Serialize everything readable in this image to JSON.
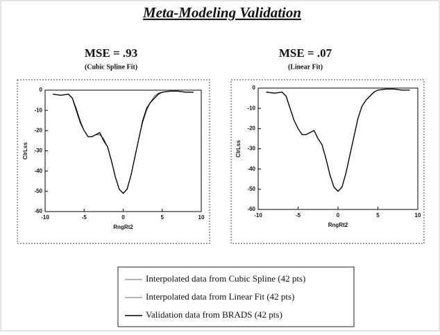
{
  "title": "Meta-Modeling Validation",
  "chart_data": [
    {
      "type": "line",
      "title": "MSE = .93",
      "subtitle": "(Cubic Spline Fit)",
      "x_label": "RngRt2",
      "y_label": "ClrLss",
      "x": [
        -9,
        -8,
        -7,
        -6.5,
        -6,
        -5.5,
        -5,
        -4.5,
        -4,
        -3.5,
        -3,
        -2.5,
        -2,
        -1.5,
        -1,
        -0.5,
        0,
        0.5,
        1,
        1.5,
        2,
        2.5,
        3,
        3.5,
        4,
        4.5,
        5,
        6,
        7,
        8,
        9
      ],
      "series": [
        {
          "name": "Interpolated data from Cubic Spline (42 pts)",
          "color": "#333333",
          "values": [
            -2,
            -2.5,
            -2,
            -4,
            -9,
            -15,
            -20,
            -23,
            -23,
            -22,
            -22,
            -24,
            -28,
            -35,
            -43,
            -49,
            -51,
            -49,
            -42,
            -33,
            -24,
            -16,
            -10,
            -6,
            -3,
            -1.5,
            -1,
            -0.5,
            -0.5,
            -1,
            -1
          ]
        },
        {
          "name": "Validation data from BRADS (42 pts)",
          "color": "#000000",
          "values": [
            -2,
            -2.5,
            -2,
            -4,
            -10,
            -16,
            -20,
            -23,
            -23,
            -22,
            -21,
            -25,
            -28,
            -35,
            -43,
            -49,
            -51,
            -49,
            -42,
            -33,
            -24,
            -15,
            -9,
            -6,
            -4,
            -2,
            -1,
            -0.5,
            -0.5,
            -1,
            -1
          ]
        }
      ],
      "xlim": [
        -10,
        10
      ],
      "xticks": [
        -10,
        -5,
        0,
        5,
        10
      ],
      "ylim": [
        -60,
        0
      ],
      "yticks": [
        -60,
        -50,
        -40,
        -30,
        -20,
        -10,
        0
      ]
    },
    {
      "type": "line",
      "title": "MSE = .07",
      "subtitle": "(Linear Fit)",
      "x_label": "RngRt2",
      "y_label": "ClrLss",
      "x": [
        -9,
        -8,
        -7,
        -6.5,
        -6,
        -5.5,
        -5,
        -4.5,
        -4,
        -3.5,
        -3,
        -2.5,
        -2,
        -1.5,
        -1,
        -0.5,
        0,
        0.5,
        1,
        1.5,
        2,
        2.5,
        3,
        3.5,
        4,
        4.5,
        5,
        6,
        7,
        8,
        9
      ],
      "series": [
        {
          "name": "Interpolated data from Linear Fit (42 pts)",
          "color": "#333333",
          "values": [
            -2,
            -2.5,
            -2,
            -4,
            -10,
            -16,
            -20,
            -23,
            -23,
            -22,
            -21,
            -25,
            -28,
            -35,
            -43,
            -49,
            -51,
            -49,
            -42,
            -33,
            -24,
            -15,
            -9,
            -6,
            -4,
            -2,
            -1,
            -0.5,
            -0.5,
            -1,
            -1
          ]
        },
        {
          "color": "#000000",
          "values": [
            -2,
            -2.5,
            -2,
            -4,
            -10,
            -16,
            -20,
            -23,
            -23,
            -22,
            -21,
            -25,
            -28,
            -35,
            -43,
            -49,
            -51,
            -49,
            -42,
            -33,
            -24,
            -15,
            -9,
            -6,
            -4,
            -2,
            -1,
            -0.5,
            -0.5,
            -1,
            -1
          ]
        }
      ],
      "xlim": [
        -10,
        10
      ],
      "xticks": [
        -10,
        -5,
        0,
        5,
        10
      ],
      "ylim": [
        -60,
        0
      ],
      "yticks": [
        -60,
        -50,
        -40,
        -30,
        -20,
        -10,
        0
      ]
    }
  ]
}
